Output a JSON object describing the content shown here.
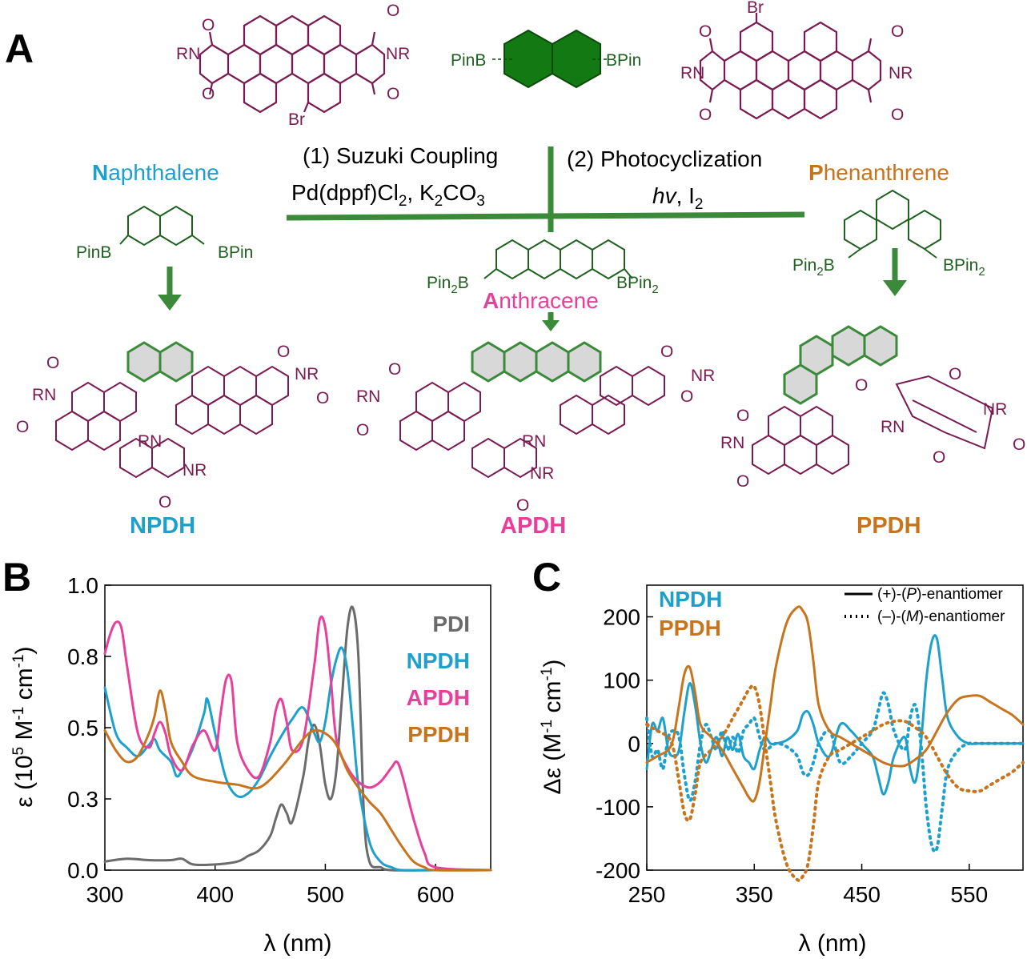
{
  "colors": {
    "naphthalene": "#1ea0cc",
    "anthracene": "#e8409a",
    "phenanthrene": "#c8741c",
    "pdi": "#6b6b6b",
    "green": "#3a8a3a",
    "dark_green": "#1f5f1f",
    "maroon": "#7a1a52",
    "black": "#000000"
  },
  "panel_labels": {
    "a": "A",
    "b": "B",
    "c": "C"
  },
  "scheme": {
    "step1_line1": "(1) Suzuki Coupling",
    "step1_line2_main": "Pd(dppf)Cl",
    "step1_line2_sub": "2",
    "step1_line2_mid": ", K",
    "step1_line2_sub2": "2",
    "step1_line2_end": "CO",
    "step1_line2_sub3": "3",
    "step2_line1": "(2) Photocyclization",
    "step2_hv": "hv",
    "step2_i": ", I",
    "step2_sub": "2",
    "top_left_mol": {
      "rn": "RN",
      "nr": "NR",
      "o": "O",
      "br": "Br"
    },
    "center_reagent": {
      "left": "PinB",
      "right": "BPin"
    },
    "top_right_mol": {
      "rn": "RN",
      "nr": "NR",
      "o": "O",
      "br": "Br"
    },
    "naph": {
      "name_first": "N",
      "name_rest": "aphthalene",
      "left": "PinB",
      "right": "BPin",
      "product": "NPDH"
    },
    "anth": {
      "name_first": "A",
      "name_rest": "nthracene",
      "left": "Pin",
      "left_sub": "2",
      "left_end": "B",
      "right": "BPin",
      "right_sub": "2",
      "product": "APDH"
    },
    "phen": {
      "name_first": "P",
      "name_rest": "henanthrene",
      "left": "Pin",
      "left_sub": "2",
      "left_end": "B",
      "right": "BPin",
      "right_sub": "2",
      "product": "PPDH"
    },
    "product_labels": {
      "rn": "RN",
      "nr": "NR",
      "o": "O"
    }
  },
  "chart_data": [
    {
      "type": "line",
      "panel": "B",
      "xlabel": "λ (nm)",
      "ylabel_main": "ε (10",
      "ylabel_sup": "5",
      "ylabel_mid": " M",
      "ylabel_sup2": "-1",
      "ylabel_mid2": " cm",
      "ylabel_sup3": "-1",
      "ylabel_end": ")",
      "xlim": [
        300,
        650
      ],
      "ylim": [
        0,
        1.0
      ],
      "xticks": [
        "300",
        "400",
        "500",
        "600"
      ],
      "xtick_values": [
        300,
        400,
        500,
        600
      ],
      "yticks": [
        "0.0",
        "0.3",
        "0.5",
        "0.8",
        "1.0"
      ],
      "ytick_values": [
        0.0,
        0.25,
        0.5,
        0.75,
        1.0
      ],
      "legend": [
        "PDI",
        "NPDH",
        "APDH",
        "PPDH"
      ],
      "series": [
        {
          "name": "PDI",
          "color": "#6b6b6b",
          "x": [
            300,
            320,
            340,
            360,
            370,
            380,
            400,
            420,
            430,
            440,
            450,
            455,
            460,
            465,
            470,
            480,
            485,
            490,
            495,
            500,
            505,
            510,
            515,
            520,
            525,
            530,
            535,
            540,
            550,
            560,
            600,
            650
          ],
          "y": [
            0.03,
            0.04,
            0.035,
            0.035,
            0.04,
            0.02,
            0.02,
            0.03,
            0.05,
            0.07,
            0.12,
            0.18,
            0.23,
            0.2,
            0.17,
            0.33,
            0.46,
            0.51,
            0.44,
            0.3,
            0.25,
            0.35,
            0.6,
            0.85,
            0.92,
            0.75,
            0.2,
            0.03,
            0.01,
            0.0,
            0.0,
            0.0
          ]
        },
        {
          "name": "NPDH",
          "color": "#1ea0cc",
          "x": [
            300,
            310,
            320,
            330,
            340,
            345,
            350,
            360,
            365,
            370,
            380,
            390,
            393,
            400,
            410,
            420,
            430,
            440,
            450,
            460,
            470,
            480,
            490,
            495,
            500,
            505,
            510,
            515,
            520,
            525,
            530,
            540,
            550,
            560,
            570,
            600,
            650
          ],
          "y": [
            0.64,
            0.48,
            0.43,
            0.4,
            0.44,
            0.46,
            0.42,
            0.38,
            0.33,
            0.35,
            0.43,
            0.55,
            0.6,
            0.48,
            0.32,
            0.26,
            0.27,
            0.32,
            0.4,
            0.47,
            0.53,
            0.57,
            0.48,
            0.45,
            0.52,
            0.65,
            0.74,
            0.78,
            0.7,
            0.5,
            0.3,
            0.1,
            0.03,
            0.01,
            0.0,
            0.0,
            0.0
          ]
        },
        {
          "name": "APDH",
          "color": "#e8409a",
          "x": [
            300,
            305,
            310,
            315,
            320,
            330,
            340,
            345,
            350,
            355,
            360,
            370,
            380,
            390,
            400,
            405,
            410,
            415,
            420,
            430,
            440,
            450,
            455,
            460,
            465,
            470,
            480,
            490,
            495,
            500,
            505,
            510,
            520,
            530,
            540,
            550,
            560,
            565,
            570,
            580,
            590,
            600,
            650
          ],
          "y": [
            0.76,
            0.83,
            0.87,
            0.85,
            0.72,
            0.48,
            0.43,
            0.48,
            0.52,
            0.48,
            0.4,
            0.35,
            0.44,
            0.49,
            0.42,
            0.55,
            0.67,
            0.66,
            0.45,
            0.35,
            0.33,
            0.45,
            0.56,
            0.6,
            0.52,
            0.42,
            0.46,
            0.72,
            0.88,
            0.85,
            0.67,
            0.46,
            0.36,
            0.31,
            0.29,
            0.31,
            0.36,
            0.38,
            0.33,
            0.18,
            0.06,
            0.01,
            0.0
          ]
        },
        {
          "name": "PPDH",
          "color": "#c8741c",
          "x": [
            300,
            310,
            320,
            330,
            340,
            345,
            350,
            355,
            360,
            370,
            380,
            400,
            420,
            440,
            460,
            480,
            490,
            500,
            510,
            520,
            530,
            540,
            550,
            560,
            570,
            580,
            590,
            600,
            650
          ],
          "y": [
            0.49,
            0.42,
            0.38,
            0.4,
            0.48,
            0.54,
            0.63,
            0.56,
            0.45,
            0.38,
            0.33,
            0.31,
            0.3,
            0.29,
            0.36,
            0.46,
            0.49,
            0.48,
            0.44,
            0.35,
            0.29,
            0.24,
            0.2,
            0.14,
            0.08,
            0.03,
            0.01,
            0.0,
            0.0
          ]
        }
      ]
    },
    {
      "type": "line",
      "panel": "C",
      "xlabel": "λ (nm)",
      "ylabel_main": "Δε (M",
      "ylabel_sup": "-1",
      "ylabel_mid": " cm",
      "ylabel_sup2": "-1",
      "ylabel_end": ")",
      "xlim": [
        250,
        600
      ],
      "ylim": [
        -200,
        250
      ],
      "xticks": [
        "250",
        "350",
        "450",
        "550"
      ],
      "xtick_values": [
        250,
        350,
        450,
        550
      ],
      "yticks": [
        "200",
        "100",
        "0",
        "-100",
        "-200"
      ],
      "ytick_values": [
        200,
        100,
        0,
        -100,
        -200
      ],
      "legend_series": [
        "NPDH",
        "PPDH"
      ],
      "legend_styles": [
        {
          "label_pre": "(+)-(",
          "label_it": "P",
          "label_post": ")-enantiomer",
          "style": "solid"
        },
        {
          "label_pre": "(–)-(",
          "label_it": "M",
          "label_post": ")-enantiomer",
          "style": "dotted"
        }
      ],
      "series": [
        {
          "name": "NPDH",
          "enantiomer": "P",
          "color": "#1ea0cc",
          "style": "solid",
          "x": [
            250,
            255,
            260,
            265,
            270,
            275,
            280,
            285,
            290,
            295,
            300,
            305,
            310,
            315,
            320,
            325,
            330,
            335,
            340,
            345,
            350,
            355,
            360,
            365,
            370,
            380,
            390,
            395,
            400,
            405,
            410,
            420,
            430,
            440,
            450,
            460,
            465,
            470,
            475,
            480,
            490,
            495,
            500,
            505,
            510,
            515,
            520,
            525,
            530,
            540,
            550,
            560,
            600
          ],
          "y": [
            -40,
            30,
            20,
            40,
            -10,
            -20,
            -10,
            50,
            95,
            60,
            0,
            -30,
            -10,
            10,
            -20,
            10,
            -10,
            15,
            -20,
            -30,
            -40,
            -10,
            10,
            0,
            0,
            5,
            20,
            45,
            50,
            30,
            0,
            -20,
            30,
            20,
            0,
            -20,
            -50,
            -80,
            -60,
            -20,
            10,
            -40,
            -60,
            0,
            100,
            160,
            165,
            100,
            40,
            10,
            0,
            0,
            0
          ]
        },
        {
          "name": "NPDH",
          "enantiomer": "M",
          "color": "#1ea0cc",
          "style": "dotted",
          "x": [
            250,
            255,
            260,
            265,
            270,
            275,
            280,
            285,
            290,
            295,
            300,
            305,
            310,
            315,
            320,
            325,
            330,
            335,
            340,
            345,
            350,
            355,
            360,
            370,
            380,
            390,
            395,
            400,
            405,
            410,
            420,
            430,
            440,
            450,
            460,
            465,
            470,
            475,
            480,
            490,
            495,
            500,
            505,
            510,
            515,
            520,
            525,
            530,
            540,
            550,
            560,
            600
          ],
          "y": [
            40,
            -20,
            -10,
            -40,
            10,
            20,
            10,
            -50,
            -90,
            -60,
            0,
            30,
            10,
            -10,
            20,
            -10,
            10,
            -15,
            20,
            30,
            40,
            10,
            -10,
            0,
            -5,
            -20,
            -45,
            -50,
            -30,
            0,
            20,
            -30,
            -20,
            0,
            20,
            50,
            80,
            60,
            20,
            -10,
            40,
            60,
            0,
            -100,
            -160,
            -165,
            -100,
            -40,
            -10,
            0,
            0,
            0
          ]
        },
        {
          "name": "PPDH",
          "enantiomer": "P",
          "color": "#c8741c",
          "style": "solid",
          "x": [
            250,
            260,
            270,
            275,
            280,
            285,
            290,
            295,
            300,
            310,
            320,
            330,
            340,
            345,
            350,
            355,
            360,
            365,
            370,
            380,
            390,
            395,
            400,
            405,
            410,
            420,
            430,
            440,
            450,
            460,
            470,
            480,
            490,
            500,
            510,
            520,
            530,
            540,
            550,
            560,
            570,
            580,
            590,
            600
          ],
          "y": [
            -30,
            -20,
            -10,
            10,
            60,
            110,
            120,
            80,
            30,
            10,
            -10,
            -40,
            -70,
            -85,
            -90,
            -60,
            0,
            60,
            120,
            190,
            215,
            210,
            190,
            130,
            60,
            20,
            10,
            0,
            -10,
            -20,
            -30,
            -35,
            -35,
            -25,
            -10,
            20,
            50,
            70,
            75,
            75,
            65,
            55,
            45,
            30
          ]
        },
        {
          "name": "PPDH",
          "enantiomer": "M",
          "color": "#c8741c",
          "style": "dotted",
          "x": [
            250,
            260,
            270,
            275,
            280,
            285,
            290,
            295,
            300,
            310,
            320,
            330,
            340,
            345,
            350,
            355,
            360,
            365,
            370,
            380,
            390,
            395,
            400,
            405,
            410,
            420,
            430,
            440,
            450,
            460,
            470,
            480,
            490,
            500,
            510,
            520,
            530,
            540,
            550,
            560,
            570,
            580,
            590,
            600
          ],
          "y": [
            30,
            20,
            10,
            -10,
            -60,
            -110,
            -120,
            -80,
            -30,
            -10,
            10,
            40,
            70,
            85,
            90,
            60,
            0,
            -60,
            -120,
            -190,
            -215,
            -210,
            -190,
            -130,
            -60,
            -20,
            -10,
            0,
            10,
            20,
            30,
            35,
            35,
            25,
            10,
            -20,
            -50,
            -70,
            -75,
            -75,
            -65,
            -55,
            -45,
            -30
          ]
        }
      ]
    }
  ]
}
